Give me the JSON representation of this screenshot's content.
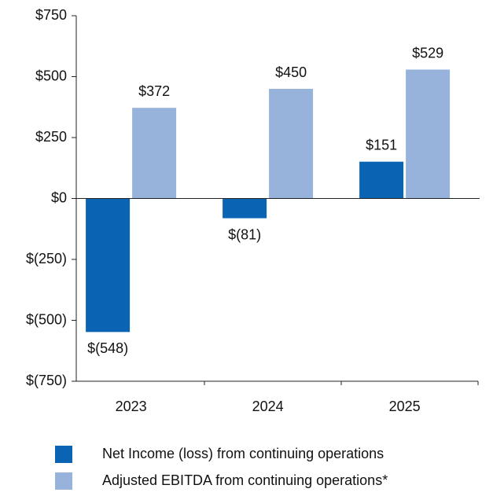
{
  "chart_data": {
    "type": "bar",
    "categories": [
      "2023",
      "2024",
      "2025"
    ],
    "series": [
      {
        "name": "Net Income (loss) from continuing operations",
        "color": "#0b63b4",
        "values": [
          -548,
          -81,
          151
        ],
        "value_labels": [
          "$(548)",
          "$(81)",
          "$151"
        ]
      },
      {
        "name": "Adjusted EBITDA from continuing operations*",
        "color": "#97b3dc",
        "values": [
          372,
          450,
          529
        ],
        "value_labels": [
          "$372",
          "$450",
          "$529"
        ]
      }
    ],
    "ylim": [
      -750,
      750
    ],
    "yticks": [
      {
        "value": 750,
        "label": "$750"
      },
      {
        "value": 500,
        "label": "$500"
      },
      {
        "value": 250,
        "label": "$250"
      },
      {
        "value": 0,
        "label": "$0"
      },
      {
        "value": -250,
        "label": "$(250)"
      },
      {
        "value": -500,
        "label": "$(500)"
      },
      {
        "value": -750,
        "label": "$(750)"
      }
    ],
    "legend": "bottom"
  }
}
